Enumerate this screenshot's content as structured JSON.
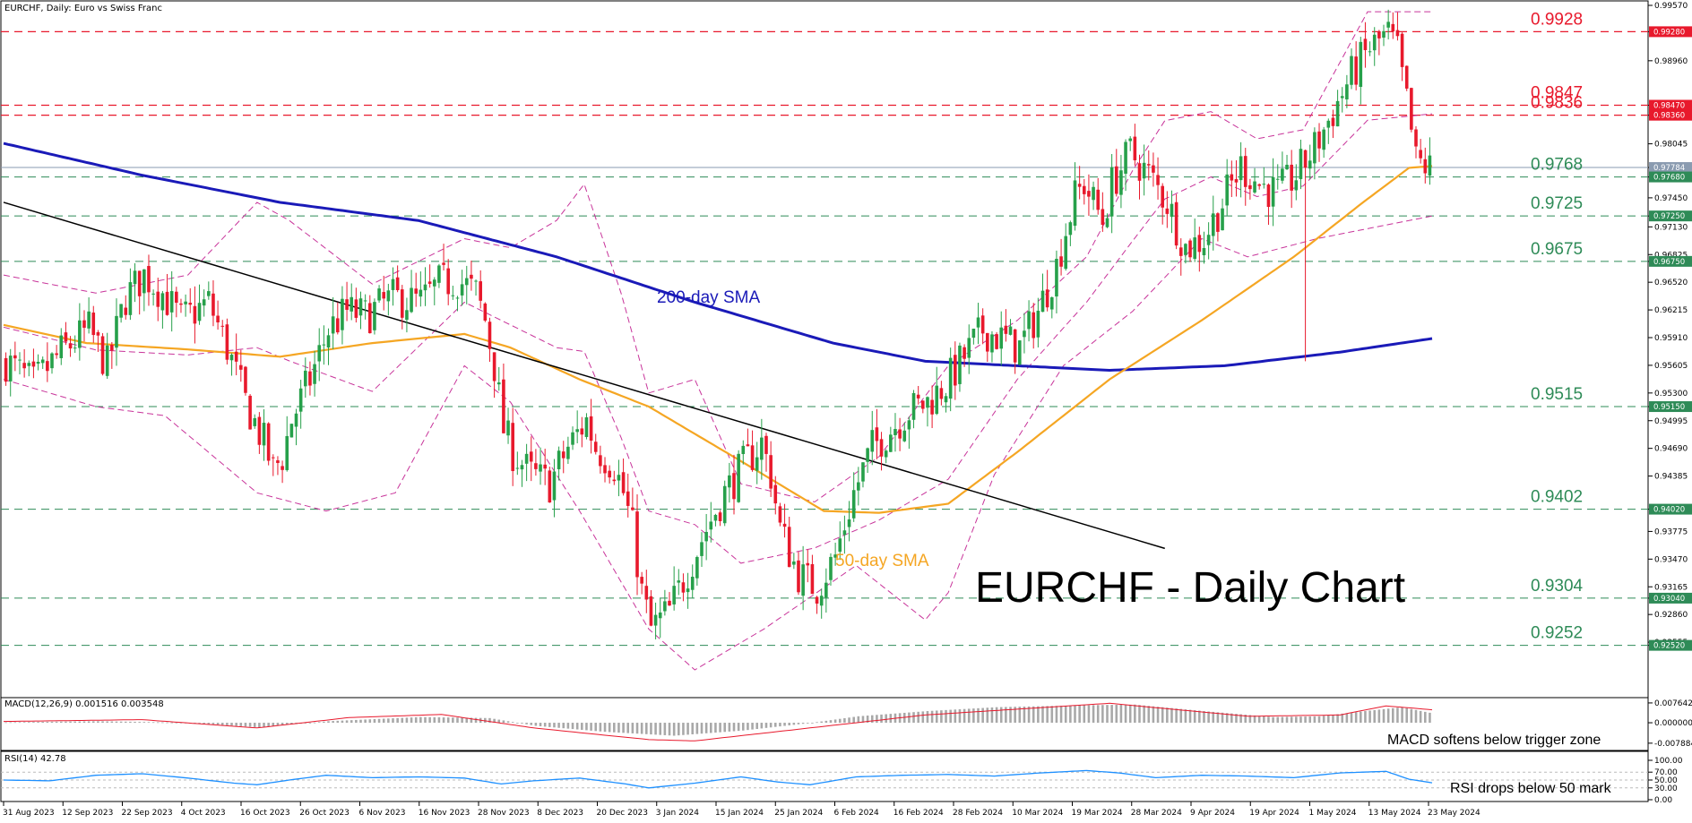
{
  "header": {
    "symbol_title": "EURCHF, Daily:  Euro vs Swiss Franc"
  },
  "colors": {
    "bull": "#26a04a",
    "bear": "#e8192c",
    "sma50": "#f5a623",
    "sma200": "#1a1ab8",
    "bollinger": "#c8349a",
    "trendline": "#000000",
    "resistance": "#e8192c",
    "support": "#2e8b57",
    "macd_line": "#e8192c",
    "macd_hist": "#a8a8a8",
    "rsi_line": "#1e90ff"
  },
  "annotations": {
    "title": "EURCHF - Daily Chart",
    "sma200_label": "200-day SMA",
    "sma50_label": "50-day SMA",
    "macd_note": "MACD softens below trigger zone",
    "rsi_note": "RSI drops below 50 mark"
  },
  "indicators": {
    "macd_header": "MACD(12,26,9) 0.001516 0.003548",
    "rsi_header": "RSI(14) 42.78",
    "macd_ticks": [
      "0.007642",
      "0.000000",
      "-0.007884"
    ],
    "rsi_ticks": [
      "100.00",
      "70.00",
      "50.00",
      "30.00",
      "0.00"
    ]
  },
  "chart_data": {
    "type": "candlestick",
    "title": "EURCHF - Daily Chart",
    "ylim": [
      0.9225,
      0.9957
    ],
    "price_ticks": [
      "0.99570",
      "0.99280",
      "0.98960",
      "0.98470",
      "0.98360",
      "0.98045",
      "0.97784",
      "0.97680",
      "0.97450",
      "0.97250",
      "0.97130",
      "0.96825",
      "0.96750",
      "0.96520",
      "0.96215",
      "0.95910",
      "0.95605",
      "0.95300",
      "0.95150",
      "0.94995",
      "0.94690",
      "0.94385",
      "0.94020",
      "0.93775",
      "0.93470",
      "0.93165",
      "0.93040",
      "0.92860",
      "0.92555",
      "0.92520"
    ],
    "dates": [
      "31 Aug 2023",
      "12 Sep 2023",
      "22 Sep 2023",
      "4 Oct 2023",
      "16 Oct 2023",
      "26 Oct 2023",
      "6 Nov 2023",
      "16 Nov 2023",
      "28 Nov 2023",
      "8 Dec 2023",
      "20 Dec 2023",
      "3 Jan 2024",
      "15 Jan 2024",
      "25 Jan 2024",
      "6 Feb 2024",
      "16 Feb 2024",
      "28 Feb 2024",
      "10 Mar 2024",
      "19 Mar 2024",
      "28 Mar 2024",
      "9 Apr 2024",
      "19 Apr 2024",
      "1 May 2024",
      "13 May 2024",
      "23 May 2024"
    ],
    "levels": [
      {
        "value": 0.9928,
        "label": "0.9928",
        "kind": "resistance",
        "tag": "0.99280"
      },
      {
        "value": 0.9847,
        "label": "0.9847",
        "kind": "resistance",
        "tag": "0.98470"
      },
      {
        "value": 0.9836,
        "label": "0.9836",
        "kind": "resistance",
        "tag": "0.98360"
      },
      {
        "value": 0.9768,
        "label": "0.9768",
        "kind": "support",
        "tag": "0.97680"
      },
      {
        "value": 0.9725,
        "label": "0.9725",
        "kind": "support",
        "tag": "0.97250"
      },
      {
        "value": 0.9675,
        "label": "0.9675",
        "kind": "support",
        "tag": "0.96750"
      },
      {
        "value": 0.9515,
        "label": "0.9515",
        "kind": "support",
        "tag": "0.95150"
      },
      {
        "value": 0.9402,
        "label": "0.9402",
        "kind": "support",
        "tag": "0.94020"
      },
      {
        "value": 0.9304,
        "label": "0.9304",
        "kind": "support",
        "tag": "0.93040"
      },
      {
        "value": 0.9252,
        "label": "0.9252",
        "kind": "support",
        "tag": "0.92520"
      }
    ],
    "current_price": {
      "value": 0.97784,
      "tag": "0.97784"
    },
    "close_path": [
      [
        0,
        0.9565
      ],
      [
        6,
        0.954
      ],
      [
        12,
        0.9575
      ],
      [
        18,
        0.96
      ],
      [
        22,
        0.956
      ],
      [
        26,
        0.9635
      ],
      [
        30,
        0.966
      ],
      [
        34,
        0.964
      ],
      [
        38,
        0.961
      ],
      [
        44,
        0.963
      ],
      [
        48,
        0.958
      ],
      [
        52,
        0.952
      ],
      [
        56,
        0.9475
      ],
      [
        58,
        0.9445
      ],
      [
        60,
        0.946
      ],
      [
        62,
        0.95
      ],
      [
        66,
        0.9545
      ],
      [
        70,
        0.96
      ],
      [
        74,
        0.962
      ],
      [
        78,
        0.9615
      ],
      [
        84,
        0.9635
      ],
      [
        90,
        0.963
      ],
      [
        94,
        0.965
      ],
      [
        98,
        0.9655
      ],
      [
        102,
        0.964
      ],
      [
        104,
        0.961
      ],
      [
        106,
        0.956
      ],
      [
        108,
        0.949
      ],
      [
        110,
        0.9465
      ],
      [
        114,
        0.944
      ],
      [
        118,
        0.943
      ],
      [
        122,
        0.947
      ],
      [
        126,
        0.95
      ],
      [
        128,
        0.947
      ],
      [
        132,
        0.945
      ],
      [
        134,
        0.942
      ],
      [
        136,
        0.938
      ],
      [
        138,
        0.931
      ],
      [
        140,
        0.927
      ],
      [
        144,
        0.929
      ],
      [
        148,
        0.9335
      ],
      [
        152,
        0.938
      ],
      [
        156,
        0.942
      ],
      [
        160,
        0.945
      ],
      [
        164,
        0.9475
      ],
      [
        166,
        0.944
      ],
      [
        168,
        0.938
      ],
      [
        172,
        0.933
      ],
      [
        176,
        0.9315
      ],
      [
        180,
        0.935
      ],
      [
        184,
        0.942
      ],
      [
        188,
        0.947
      ],
      [
        192,
        0.949
      ],
      [
        196,
        0.951
      ],
      [
        200,
        0.952
      ],
      [
        204,
        0.954
      ],
      [
        208,
        0.957
      ],
      [
        212,
        0.96
      ],
      [
        216,
        0.959
      ],
      [
        220,
        0.958
      ],
      [
        224,
        0.962
      ],
      [
        228,
        0.967
      ],
      [
        230,
        0.971
      ],
      [
        232,
        0.9745
      ],
      [
        234,
        0.976
      ],
      [
        238,
        0.972
      ],
      [
        240,
        0.976
      ],
      [
        244,
        0.9795
      ],
      [
        248,
        0.977
      ],
      [
        252,
        0.974
      ],
      [
        256,
        0.969
      ],
      [
        260,
        0.97
      ],
      [
        264,
        0.974
      ],
      [
        268,
        0.978
      ],
      [
        272,
        0.976
      ],
      [
        276,
        0.975
      ],
      [
        280,
        0.977
      ],
      [
        284,
        0.98
      ],
      [
        288,
        0.984
      ],
      [
        292,
        0.988
      ],
      [
        296,
        0.991
      ],
      [
        300,
        0.9925
      ],
      [
        302,
        0.9905
      ],
      [
        304,
        0.985
      ],
      [
        306,
        0.9785
      ],
      [
        308,
        0.978
      ],
      [
        310,
        0.9775
      ]
    ],
    "sma50": [
      [
        0,
        0.9605
      ],
      [
        18,
        0.9585
      ],
      [
        40,
        0.9578
      ],
      [
        60,
        0.957
      ],
      [
        80,
        0.9585
      ],
      [
        100,
        0.9595
      ],
      [
        110,
        0.958
      ],
      [
        125,
        0.9545
      ],
      [
        140,
        0.9515
      ],
      [
        160,
        0.9455
      ],
      [
        178,
        0.94
      ],
      [
        190,
        0.9398
      ],
      [
        205,
        0.9408
      ],
      [
        220,
        0.9465
      ],
      [
        240,
        0.9545
      ],
      [
        260,
        0.961
      ],
      [
        280,
        0.968
      ],
      [
        295,
        0.974
      ],
      [
        305,
        0.9778
      ],
      [
        310,
        0.978
      ]
    ],
    "sma200": [
      [
        0,
        0.9805
      ],
      [
        30,
        0.977
      ],
      [
        60,
        0.974
      ],
      [
        90,
        0.972
      ],
      [
        120,
        0.968
      ],
      [
        150,
        0.963
      ],
      [
        180,
        0.9585
      ],
      [
        200,
        0.9565
      ],
      [
        220,
        0.956
      ],
      [
        240,
        0.9555
      ],
      [
        265,
        0.956
      ],
      [
        290,
        0.9575
      ],
      [
        310,
        0.959
      ]
    ],
    "bb_upper": [
      [
        0,
        0.966
      ],
      [
        20,
        0.964
      ],
      [
        40,
        0.966
      ],
      [
        55,
        0.974
      ],
      [
        62,
        0.972
      ],
      [
        80,
        0.965
      ],
      [
        100,
        0.97
      ],
      [
        110,
        0.969
      ],
      [
        120,
        0.972
      ],
      [
        126,
        0.976
      ],
      [
        134,
        0.964
      ],
      [
        140,
        0.953
      ],
      [
        150,
        0.9545
      ],
      [
        160,
        0.943
      ],
      [
        176,
        0.941
      ],
      [
        190,
        0.946
      ],
      [
        205,
        0.956
      ],
      [
        220,
        0.961
      ],
      [
        235,
        0.968
      ],
      [
        245,
        0.9775
      ],
      [
        252,
        0.983
      ],
      [
        262,
        0.984
      ],
      [
        272,
        0.981
      ],
      [
        282,
        0.982
      ],
      [
        296,
        0.995
      ],
      [
        310,
        0.995
      ]
    ],
    "bb_lower": [
      [
        0,
        0.9545
      ],
      [
        20,
        0.9515
      ],
      [
        35,
        0.9505
      ],
      [
        55,
        0.942
      ],
      [
        70,
        0.94
      ],
      [
        85,
        0.942
      ],
      [
        100,
        0.956
      ],
      [
        110,
        0.952
      ],
      [
        125,
        0.94
      ],
      [
        140,
        0.927
      ],
      [
        150,
        0.9225
      ],
      [
        165,
        0.927
      ],
      [
        185,
        0.934
      ],
      [
        200,
        0.928
      ],
      [
        205,
        0.931
      ],
      [
        215,
        0.944
      ],
      [
        230,
        0.956
      ],
      [
        245,
        0.962
      ],
      [
        260,
        0.97
      ],
      [
        270,
        0.968
      ],
      [
        285,
        0.97
      ],
      [
        300,
        0.9715
      ],
      [
        310,
        0.9725
      ]
    ],
    "trendline": [
      [
        0,
        0.974
      ],
      [
        238,
        0.938
      ]
    ],
    "macd": [
      [
        0,
        0.0005
      ],
      [
        30,
        0.0012
      ],
      [
        55,
        -0.002
      ],
      [
        75,
        0.002
      ],
      [
        95,
        0.0032
      ],
      [
        115,
        -0.002
      ],
      [
        140,
        -0.0065
      ],
      [
        150,
        -0.007
      ],
      [
        170,
        -0.003
      ],
      [
        200,
        0.003
      ],
      [
        240,
        0.0075
      ],
      [
        270,
        0.0025
      ],
      [
        290,
        0.003
      ],
      [
        300,
        0.0065
      ],
      [
        310,
        0.005
      ]
    ],
    "macd_hist": [
      [
        0,
        0.0002
      ],
      [
        20,
        0.0006
      ],
      [
        40,
        0.0
      ],
      [
        55,
        -0.0018
      ],
      [
        70,
        0.0006
      ],
      [
        90,
        0.0022
      ],
      [
        105,
        0.0018
      ],
      [
        115,
        -0.0012
      ],
      [
        130,
        -0.0035
      ],
      [
        145,
        -0.005
      ],
      [
        160,
        -0.003
      ],
      [
        175,
        0.0
      ],
      [
        185,
        0.0025
      ],
      [
        200,
        0.0045
      ],
      [
        215,
        0.006
      ],
      [
        235,
        0.0068
      ],
      [
        245,
        0.007
      ],
      [
        260,
        0.0045
      ],
      [
        275,
        0.0022
      ],
      [
        285,
        0.0025
      ],
      [
        295,
        0.0045
      ],
      [
        303,
        0.006
      ],
      [
        310,
        0.0035
      ]
    ],
    "rsi": [
      [
        0,
        50
      ],
      [
        10,
        48
      ],
      [
        20,
        62
      ],
      [
        30,
        66
      ],
      [
        40,
        55
      ],
      [
        50,
        42
      ],
      [
        55,
        38
      ],
      [
        62,
        50
      ],
      [
        70,
        62
      ],
      [
        80,
        56
      ],
      [
        90,
        58
      ],
      [
        100,
        55
      ],
      [
        108,
        40
      ],
      [
        115,
        48
      ],
      [
        125,
        55
      ],
      [
        135,
        40
      ],
      [
        140,
        30
      ],
      [
        150,
        42
      ],
      [
        160,
        58
      ],
      [
        168,
        45
      ],
      [
        175,
        38
      ],
      [
        185,
        58
      ],
      [
        195,
        62
      ],
      [
        205,
        64
      ],
      [
        215,
        60
      ],
      [
        225,
        68
      ],
      [
        235,
        74
      ],
      [
        242,
        68
      ],
      [
        250,
        56
      ],
      [
        260,
        62
      ],
      [
        270,
        60
      ],
      [
        280,
        56
      ],
      [
        290,
        68
      ],
      [
        300,
        72
      ],
      [
        305,
        52
      ],
      [
        310,
        43
      ]
    ],
    "macd_ylim": [
      -0.01,
      0.009
    ],
    "rsi_ylim": [
      0,
      100
    ]
  }
}
